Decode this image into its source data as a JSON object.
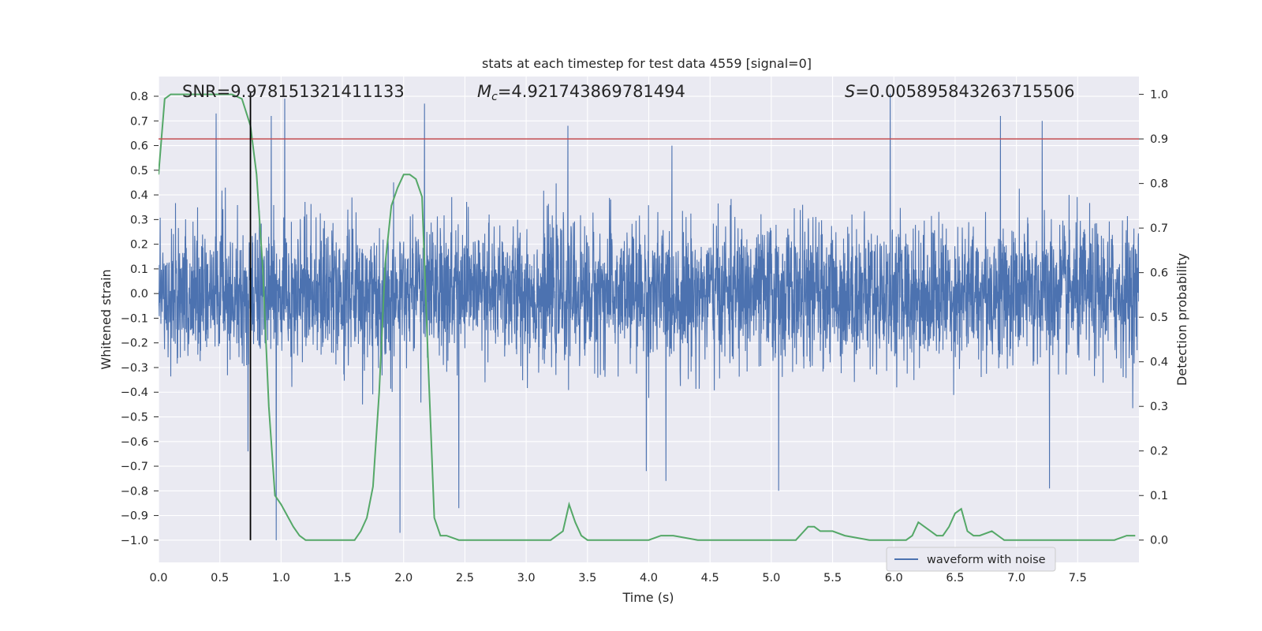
{
  "chart_data": {
    "type": "line",
    "title": "stats at each timestep for test data 4559 [signal=0]",
    "xlabel": "Time (s)",
    "ylabel": "Whitened strain",
    "y2label": "Detection probability",
    "xlim": [
      0.0,
      8.0
    ],
    "ylim": [
      -1.09,
      0.88
    ],
    "y2lim": [
      -0.05,
      1.04
    ],
    "xticks": [
      "0.0",
      "0.5",
      "1.0",
      "1.5",
      "2.0",
      "2.5",
      "3.0",
      "3.5",
      "4.0",
      "4.5",
      "5.0",
      "5.5",
      "6.0",
      "6.5",
      "7.0",
      "7.5"
    ],
    "yticks": [
      "0.8",
      "0.7",
      "0.6",
      "0.5",
      "0.4",
      "0.3",
      "0.2",
      "0.1",
      "0.0",
      "−0.1",
      "−0.2",
      "−0.3",
      "−0.4",
      "−0.5",
      "−0.6",
      "−0.7",
      "−0.8",
      "−0.9",
      "−1.0"
    ],
    "y2ticks": [
      "1.0",
      "0.9",
      "0.8",
      "0.7",
      "0.6",
      "0.5",
      "0.4",
      "0.3",
      "0.2",
      "0.1",
      "0.0"
    ],
    "grid": true,
    "legend_position": "lower-right",
    "annotations": {
      "snr": "SNR=9.978151321411133",
      "mc_symbol": "M",
      "mc_sub": "c",
      "mc_value": "=4.921743869781494",
      "s_symbol": "S",
      "s_value": "=0.005895843263715506"
    },
    "series": [
      {
        "name": "waveform with noise",
        "axis": "left",
        "color": "#4c72b0",
        "description": "dense whitened strain noise, core band about ±0.3 with spikes up to ±0.8",
        "notable_spikes": [
          {
            "x": 0.47,
            "y": 0.73
          },
          {
            "x": 0.73,
            "y": -0.64
          },
          {
            "x": 0.92,
            "y": 0.72
          },
          {
            "x": 0.96,
            "y": -1.0
          },
          {
            "x": 1.03,
            "y": 0.79
          },
          {
            "x": 1.97,
            "y": -0.97
          },
          {
            "x": 2.17,
            "y": 0.77
          },
          {
            "x": 2.45,
            "y": -0.87
          },
          {
            "x": 3.34,
            "y": 0.68
          },
          {
            "x": 3.98,
            "y": -0.72
          },
          {
            "x": 4.14,
            "y": -0.76
          },
          {
            "x": 5.06,
            "y": -0.8
          },
          {
            "x": 5.97,
            "y": 0.81
          },
          {
            "x": 6.87,
            "y": 0.72
          },
          {
            "x": 7.21,
            "y": 0.7
          },
          {
            "x": 7.27,
            "y": -0.79
          }
        ]
      },
      {
        "name": "",
        "axis": "right",
        "color": "#55a868",
        "x": [
          0.0,
          0.05,
          0.1,
          0.2,
          0.3,
          0.4,
          0.5,
          0.6,
          0.68,
          0.75,
          0.8,
          0.85,
          0.9,
          0.95,
          1.0,
          1.1,
          1.15,
          1.2,
          1.3,
          1.4,
          1.5,
          1.6,
          1.65,
          1.7,
          1.75,
          1.8,
          1.85,
          1.9,
          1.95,
          2.0,
          2.05,
          2.1,
          2.15,
          2.2,
          2.25,
          2.3,
          2.35,
          2.45,
          2.5,
          2.6,
          2.8,
          3.0,
          3.1,
          3.2,
          3.3,
          3.35,
          3.4,
          3.45,
          3.5,
          3.6,
          3.8,
          4.0,
          4.1,
          4.2,
          4.4,
          4.6,
          4.8,
          5.0,
          5.1,
          5.2,
          5.3,
          5.35,
          5.4,
          5.5,
          5.6,
          5.8,
          6.0,
          6.1,
          6.15,
          6.2,
          6.25,
          6.3,
          6.35,
          6.4,
          6.45,
          6.5,
          6.55,
          6.6,
          6.65,
          6.7,
          6.8,
          6.9,
          7.0,
          7.1,
          7.2,
          7.4,
          7.6,
          7.8,
          7.9,
          7.97
        ],
        "values": [
          0.82,
          0.99,
          1.0,
          1.0,
          1.0,
          1.0,
          1.0,
          1.0,
          0.99,
          0.93,
          0.82,
          0.61,
          0.3,
          0.1,
          0.08,
          0.03,
          0.01,
          0.0,
          0.0,
          0.0,
          0.0,
          0.0,
          0.02,
          0.05,
          0.12,
          0.33,
          0.62,
          0.75,
          0.79,
          0.82,
          0.82,
          0.81,
          0.77,
          0.4,
          0.05,
          0.01,
          0.01,
          0.0,
          0.0,
          0.0,
          0.0,
          0.0,
          0.0,
          0.0,
          0.02,
          0.08,
          0.04,
          0.01,
          0.0,
          0.0,
          0.0,
          0.0,
          0.01,
          0.01,
          0.0,
          0.0,
          0.0,
          0.0,
          0.0,
          0.0,
          0.03,
          0.03,
          0.02,
          0.02,
          0.01,
          0.0,
          0.0,
          0.0,
          0.01,
          0.04,
          0.03,
          0.02,
          0.01,
          0.01,
          0.03,
          0.06,
          0.07,
          0.02,
          0.01,
          0.01,
          0.02,
          0.0,
          0.0,
          0.0,
          0.0,
          0.0,
          0.0,
          0.0,
          0.01,
          0.01
        ]
      }
    ],
    "threshold": {
      "axis": "right",
      "value": 0.9,
      "color": "#c44e52"
    },
    "marker_line": {
      "x": 0.75,
      "color": "#000000"
    }
  }
}
